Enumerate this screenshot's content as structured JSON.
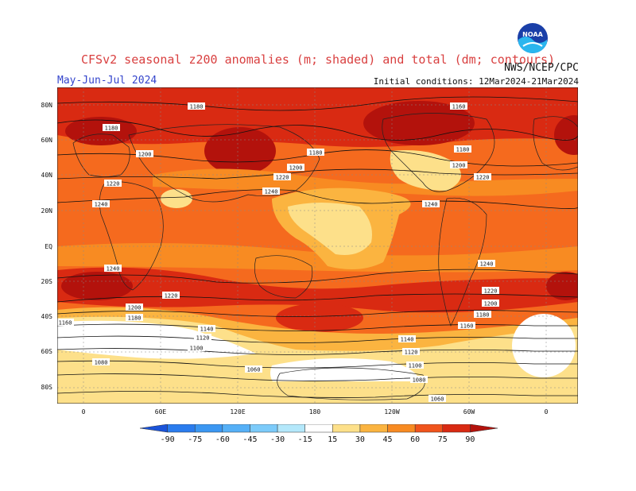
{
  "header": {
    "title": "CFSv2 seasonal z200 anomalies (m; shaded) and total (dm; contours)",
    "season": "May-Jun-Jul 2024",
    "initial_conditions": "Initial conditions: 12Mar2024-21Mar2024",
    "agency": "NWS/NCEP/CPC",
    "logo_text": "NOAA"
  },
  "axes": {
    "lat_labels": [
      "80N",
      "60N",
      "40N",
      "20N",
      "EQ",
      "20S",
      "40S",
      "60S",
      "80S"
    ],
    "lon_labels": [
      "0",
      "60E",
      "120E",
      "180",
      "120W",
      "60W",
      "0"
    ]
  },
  "contours": {
    "labels": [
      "1180",
      "1180",
      "1200",
      "1220",
      "1240",
      "1220",
      "1200",
      "1180",
      "1160",
      "1180",
      "1200",
      "1220",
      "1240",
      "1240",
      "1240",
      "1220",
      "1200",
      "1180",
      "1160",
      "1140",
      "1120",
      "1100",
      "1080",
      "1060",
      "1240",
      "1220",
      "1200",
      "1180",
      "1160",
      "1140",
      "1120",
      "1100",
      "1080",
      "1060"
    ]
  },
  "colorbar": {
    "labels": [
      "-90",
      "-75",
      "-60",
      "-45",
      "-30",
      "-15",
      "15",
      "30",
      "45",
      "60",
      "75",
      "90"
    ],
    "colors": [
      "#1a53d9",
      "#2a7cee",
      "#3b97f2",
      "#55b0f7",
      "#7ccbfa",
      "#b4e8fb",
      "#ffffff",
      "#fde08a",
      "#fbb440",
      "#f88b22",
      "#f0541c",
      "#d92a12",
      "#b3120c"
    ]
  },
  "palette": {
    "ocean_base": "#f56a1e",
    "strong": "#d92a12",
    "darkest": "#b3120c",
    "mid": "#f88b22",
    "light": "#fbb440",
    "pale": "#fde08a",
    "white": "#ffffff"
  }
}
